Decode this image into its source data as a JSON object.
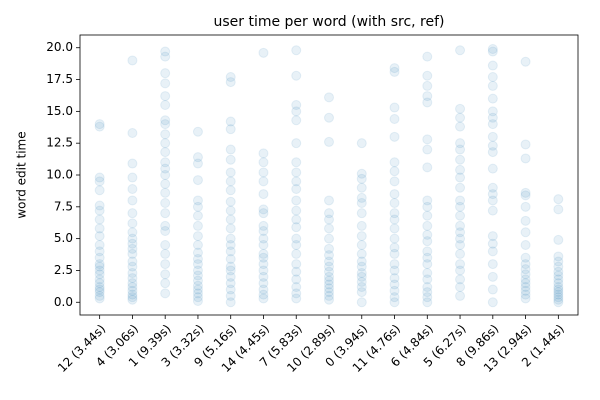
{
  "chart_data": {
    "type": "strip",
    "title": "user time per word (with src, ref)",
    "y_label": "word edit time",
    "color": "#1f77b4",
    "alpha": 0.1,
    "categories": [
      "12 (3.44s)",
      "4 (3.06s)",
      "1 (9.39s)",
      "3 (3.32s)",
      "9 (5.16s)",
      "14 (4.45s)",
      "7 (5.83s)",
      "10 (2.89s)",
      "0 (3.94s)",
      "11 (4.76s)",
      "6 (4.84s)",
      "5 (6.27s)",
      "8 (9.86s)",
      "13 (2.94s)",
      "2 (1.44s)"
    ],
    "values": [
      [
        14,
        13.8,
        9.8,
        9.5,
        8.8,
        7.6,
        7.2,
        6.5,
        5.8,
        5.2,
        4.5,
        4.0,
        3.5,
        3.0,
        2.8,
        2.5,
        2.2,
        1.8,
        1.5,
        1.2,
        1.0,
        0.8,
        0.5,
        0.3
      ],
      [
        19,
        13.3,
        10.9,
        9.8,
        8.9,
        8.0,
        7.0,
        6.2,
        5.5,
        5.0,
        4.6,
        4.2,
        3.8,
        3.2,
        2.8,
        2.3,
        1.9,
        1.5,
        1.2,
        0.9,
        0.6,
        0.4,
        0.2
      ],
      [
        19.7,
        19.3,
        18.0,
        17.2,
        16.2,
        15.5,
        14.3,
        14.0,
        13.2,
        12.5,
        11.8,
        11.0,
        10.5,
        10.0,
        9.3,
        8.6,
        7.8,
        7.0,
        6.0,
        5.6,
        4.5,
        3.8,
        3.0,
        2.2,
        1.5,
        0.7
      ],
      [
        13.4,
        11.4,
        10.9,
        9.6,
        8.0,
        7.5,
        6.8,
        6.0,
        5.2,
        4.5,
        3.9,
        3.4,
        3.0,
        2.5,
        2.1,
        1.7,
        1.3,
        1.0,
        0.7,
        0.4,
        0.1
      ],
      [
        17.7,
        17.3,
        14.2,
        13.6,
        12.0,
        11.2,
        10.2,
        9.5,
        8.8,
        7.9,
        7.2,
        6.5,
        5.8,
        5.0,
        4.5,
        4.0,
        3.4,
        2.8,
        2.5,
        2.0,
        1.5,
        1.0,
        0.5,
        0.0
      ],
      [
        19.6,
        11.7,
        11.0,
        10.2,
        9.5,
        8.5,
        7.3,
        7.0,
        6.0,
        5.6,
        5.0,
        4.5,
        3.8,
        3.5,
        3.0,
        2.5,
        2.0,
        1.5,
        1.0,
        0.6,
        0.3
      ],
      [
        19.8,
        17.8,
        15.5,
        15.0,
        14.3,
        12.5,
        11.0,
        10.2,
        9.5,
        8.9,
        8.0,
        7.2,
        6.5,
        5.9,
        5.0,
        4.5,
        3.8,
        3.0,
        2.4,
        1.8,
        1.2,
        0.7,
        0.3
      ],
      [
        16.1,
        14.5,
        12.6,
        8.0,
        7.0,
        6.5,
        5.8,
        5.0,
        4.2,
        3.7,
        3.2,
        2.8,
        2.4,
        2.0,
        1.7,
        1.4,
        1.1,
        0.8,
        0.5,
        0.2
      ],
      [
        12.5,
        10.1,
        9.7,
        9.0,
        8.2,
        7.8,
        7.0,
        6.0,
        5.2,
        4.5,
        3.8,
        3.2,
        2.8,
        2.3,
        2.0,
        1.6,
        1.2,
        0.8,
        0.0
      ],
      [
        18.4,
        18.1,
        15.3,
        14.4,
        13.0,
        11.0,
        10.3,
        9.5,
        8.5,
        7.8,
        7.0,
        6.5,
        5.8,
        5.0,
        4.3,
        3.8,
        3.0,
        2.5,
        1.9,
        1.4,
        0.9,
        0.4,
        0.0
      ],
      [
        19.3,
        17.8,
        17.0,
        16.2,
        15.7,
        12.8,
        12.0,
        10.6,
        8.0,
        7.5,
        6.8,
        6.0,
        5.3,
        4.8,
        4.0,
        3.5,
        3.0,
        2.3,
        1.8,
        1.2,
        0.8,
        0.4,
        0.0
      ],
      [
        19.8,
        15.2,
        14.5,
        13.8,
        12.5,
        12.0,
        11.2,
        10.4,
        9.8,
        9.0,
        8.0,
        7.5,
        6.8,
        6.0,
        5.5,
        5.0,
        4.5,
        3.8,
        3.0,
        2.5,
        1.8,
        1.2,
        0.5
      ],
      [
        19.9,
        19.7,
        18.6,
        17.7,
        17.0,
        16.0,
        15.0,
        14.5,
        14.0,
        13.0,
        12.3,
        11.8,
        10.5,
        9.0,
        8.5,
        8.0,
        7.2,
        5.2,
        4.6,
        4.0,
        3.0,
        2.0,
        1.0,
        0.0
      ],
      [
        18.9,
        12.4,
        11.3,
        8.6,
        8.4,
        7.5,
        6.4,
        5.5,
        4.5,
        3.5,
        3.0,
        2.6,
        2.2,
        1.8,
        1.5,
        1.2,
        0.9,
        0.6,
        0.3
      ],
      [
        8.1,
        7.3,
        4.9,
        3.6,
        3.2,
        2.8,
        2.4,
        2.1,
        1.8,
        1.5,
        1.2,
        1.0,
        0.8,
        0.6,
        0.4,
        0.2,
        0.0
      ]
    ],
    "ylim": [
      -1,
      21
    ],
    "yticks": [
      {
        "value": 0,
        "label": "0.0"
      },
      2.5,
      {
        "value": 5,
        "label": "5.0"
      },
      7.5,
      {
        "value": 10,
        "label": "10.0"
      },
      12.5,
      {
        "value": 15,
        "label": "15.0"
      },
      17.5,
      {
        "value": 20,
        "label": "20.0"
      }
    ]
  }
}
